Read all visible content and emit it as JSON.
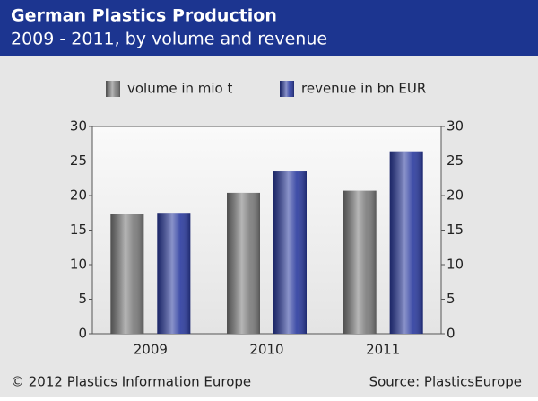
{
  "chart_data": {
    "type": "bar",
    "title": "German Plastics Production",
    "subtitle": "2009 - 2011, by volume and revenue",
    "categories": [
      "2009",
      "2010",
      "2011"
    ],
    "series": [
      {
        "name": "volume in mio t",
        "color": "#7a7a7a",
        "values": [
          17.4,
          20.4,
          20.7
        ]
      },
      {
        "name": "revenue in bn EUR",
        "color": "#2a3a9e",
        "values": [
          17.5,
          23.5,
          26.4
        ],
        "axis": "y2"
      }
    ],
    "ylim": [
      0,
      30
    ],
    "yticks": [
      0,
      5,
      10,
      15,
      20,
      25,
      30
    ],
    "y2lim": [
      0,
      30
    ],
    "y2ticks": [
      0,
      5,
      10,
      15,
      20,
      25,
      30
    ],
    "legend": "top",
    "footer_left": "© 2012 Plastics Information Europe",
    "footer_right": "Source: PlasticsEurope"
  }
}
